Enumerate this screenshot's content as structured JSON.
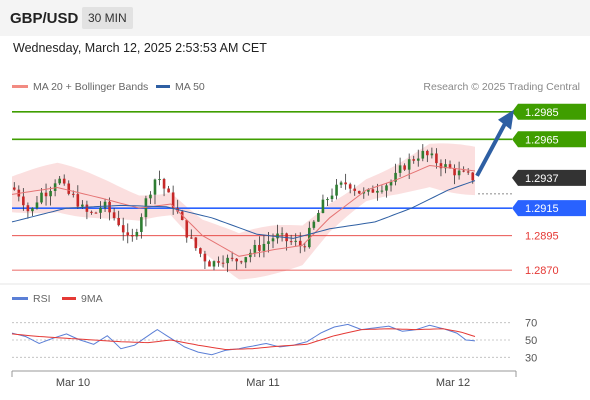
{
  "header": {
    "pair": "GBP/USD",
    "timeframe": "30 MIN"
  },
  "timestamp": "Wednesday, March 12, 2025 2:53:53 AM CET",
  "legend": {
    "ma20": "MA 20 + Bollinger Bands",
    "ma50": "MA 50",
    "ma20_color": "#f28b82",
    "ma50_color": "#2e5fa3"
  },
  "copyright": "Research © 2025 Trading Central",
  "rsi_legend": {
    "rsi": "RSI",
    "ma9": "9MA",
    "rsi_color": "#5b7fd6",
    "ma9_color": "#e53935"
  },
  "chart_data": [
    {
      "type": "candlestick",
      "y_range": [
        1.2857,
        1.2995
      ],
      "x_labels": [
        "Mar 10",
        "Mar 11",
        "Mar 12"
      ],
      "current_price": "1.2937",
      "levels": [
        {
          "label": "1.2985",
          "value": 1.2985,
          "kind": "resistance",
          "color": "#3f9e00"
        },
        {
          "label": "1.2965",
          "value": 1.2965,
          "kind": "resistance",
          "color": "#3f9e00"
        },
        {
          "label": "1.2915",
          "value": 1.2915,
          "kind": "pivot",
          "color": "#2962ff"
        },
        {
          "label": "1.2895",
          "value": 1.2895,
          "kind": "support",
          "color": "#e53935"
        },
        {
          "label": "1.2870",
          "value": 1.287,
          "kind": "support",
          "color": "#e53935"
        }
      ],
      "forecast": {
        "from": 1.2937,
        "to": 1.2985,
        "color": "#2e5fa3"
      },
      "close_path": [
        [
          0,
          1.293
        ],
        [
          4,
          1.2924
        ],
        [
          8,
          1.291
        ],
        [
          12,
          1.2925
        ],
        [
          16,
          1.2928
        ],
        [
          20,
          1.2938
        ],
        [
          24,
          1.2926
        ],
        [
          28,
          1.2922
        ],
        [
          32,
          1.2912
        ],
        [
          36,
          1.291
        ],
        [
          40,
          1.2918
        ],
        [
          44,
          1.291
        ],
        [
          48,
          1.2903
        ],
        [
          52,
          1.2888
        ],
        [
          56,
          1.2906
        ],
        [
          60,
          1.2925
        ],
        [
          64,
          1.294
        ],
        [
          68,
          1.2926
        ],
        [
          72,
          1.2915
        ],
        [
          76,
          1.29
        ],
        [
          80,
          1.2888
        ],
        [
          84,
          1.288
        ],
        [
          88,
          1.2874
        ],
        [
          92,
          1.288
        ],
        [
          96,
          1.2876
        ],
        [
          100,
          1.2878
        ],
        [
          104,
          1.2882
        ],
        [
          108,
          1.2886
        ],
        [
          112,
          1.289
        ],
        [
          116,
          1.2895
        ],
        [
          120,
          1.2892
        ],
        [
          124,
          1.289
        ],
        [
          128,
          1.2887
        ],
        [
          132,
          1.29
        ],
        [
          136,
          1.2915
        ],
        [
          140,
          1.2925
        ],
        [
          144,
          1.293
        ],
        [
          148,
          1.2934
        ],
        [
          152,
          1.2928
        ],
        [
          156,
          1.2924
        ],
        [
          160,
          1.293
        ],
        [
          164,
          1.2932
        ],
        [
          168,
          1.2935
        ],
        [
          172,
          1.2945
        ],
        [
          176,
          1.295
        ],
        [
          180,
          1.2955
        ],
        [
          184,
          1.2952
        ],
        [
          188,
          1.2948
        ],
        [
          192,
          1.2944
        ],
        [
          196,
          1.2941
        ],
        [
          200,
          1.2938
        ],
        [
          204,
          1.2937
        ]
      ],
      "ma20": [
        [
          0,
          1.2925
        ],
        [
          20,
          1.293
        ],
        [
          40,
          1.2922
        ],
        [
          56,
          1.2915
        ],
        [
          70,
          1.2918
        ],
        [
          84,
          1.2895
        ],
        [
          100,
          1.288
        ],
        [
          116,
          1.2885
        ],
        [
          128,
          1.2888
        ],
        [
          140,
          1.2908
        ],
        [
          156,
          1.2928
        ],
        [
          170,
          1.2936
        ],
        [
          184,
          1.2946
        ],
        [
          204,
          1.2942
        ]
      ],
      "ma50": [
        [
          0,
          1.2905
        ],
        [
          24,
          1.2915
        ],
        [
          48,
          1.2917
        ],
        [
          68,
          1.2916
        ],
        [
          88,
          1.2908
        ],
        [
          108,
          1.2896
        ],
        [
          124,
          1.2893
        ],
        [
          140,
          1.29
        ],
        [
          160,
          1.2905
        ],
        [
          176,
          1.2915
        ],
        [
          192,
          1.2928
        ],
        [
          204,
          1.2935
        ]
      ]
    },
    {
      "type": "line",
      "title": "RSI",
      "y_ticks": [
        70,
        50,
        30
      ],
      "y_range": [
        20,
        80
      ],
      "series": [
        {
          "name": "RSI",
          "values": [
            [
              0,
              58
            ],
            [
              6,
              54
            ],
            [
              12,
              46
            ],
            [
              18,
              52
            ],
            [
              24,
              57
            ],
            [
              30,
              50
            ],
            [
              36,
              45
            ],
            [
              42,
              55
            ],
            [
              48,
              40
            ],
            [
              54,
              44
            ],
            [
              60,
              55
            ],
            [
              64,
              62
            ],
            [
              70,
              52
            ],
            [
              76,
              42
            ],
            [
              82,
              36
            ],
            [
              88,
              33
            ],
            [
              94,
              38
            ],
            [
              100,
              40
            ],
            [
              106,
              43
            ],
            [
              112,
              46
            ],
            [
              118,
              42
            ],
            [
              124,
              44
            ],
            [
              130,
              48
            ],
            [
              136,
              58
            ],
            [
              142,
              65
            ],
            [
              148,
              68
            ],
            [
              154,
              62
            ],
            [
              160,
              64
            ],
            [
              166,
              66
            ],
            [
              172,
              60
            ],
            [
              178,
              62
            ],
            [
              184,
              67
            ],
            [
              190,
              63
            ],
            [
              196,
              58
            ],
            [
              200,
              50
            ],
            [
              204,
              49
            ]
          ]
        },
        {
          "name": "9MA",
          "values": [
            [
              0,
              57
            ],
            [
              12,
              54
            ],
            [
              24,
              52
            ],
            [
              36,
              50
            ],
            [
              48,
              48
            ],
            [
              60,
              47
            ],
            [
              70,
              50
            ],
            [
              82,
              44
            ],
            [
              94,
              39
            ],
            [
              106,
              40
            ],
            [
              118,
              43
            ],
            [
              130,
              45
            ],
            [
              142,
              55
            ],
            [
              154,
              62
            ],
            [
              166,
              63
            ],
            [
              178,
              62
            ],
            [
              190,
              63
            ],
            [
              198,
              59
            ],
            [
              204,
              54
            ]
          ]
        }
      ]
    }
  ]
}
